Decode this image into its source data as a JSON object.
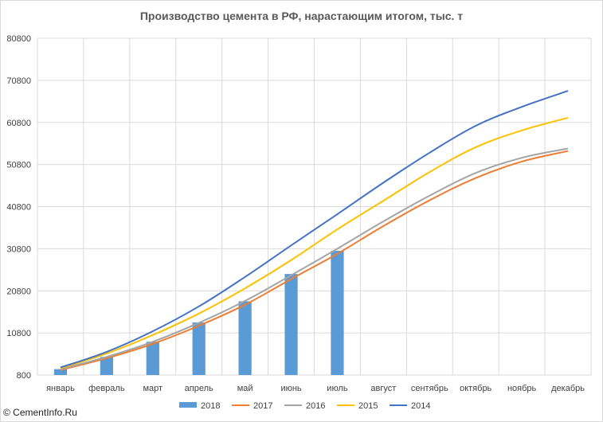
{
  "credit": "© CementInfo.Ru",
  "chart_data": {
    "type": "bar+line",
    "title": "Производство цемента в РФ, нарастающим итогом, тыс. т",
    "categories": [
      "январь",
      "февраль",
      "март",
      "апрель",
      "май",
      "июнь",
      "июль",
      "август",
      "сентябрь",
      "октябрь",
      "ноябрь",
      "декабрь"
    ],
    "yticks": [
      800,
      10800,
      20800,
      30800,
      40800,
      50800,
      60800,
      70800,
      80800
    ],
    "ylim": [
      800,
      80800
    ],
    "grid": true,
    "legend_position": "bottom",
    "series": [
      {
        "name": "2018",
        "kind": "bar",
        "color": "#5b9bd5",
        "values": [
          2200,
          5100,
          8700,
          13300,
          18300,
          24800,
          30300,
          null,
          null,
          null,
          null,
          null
        ]
      },
      {
        "name": "2017",
        "kind": "line",
        "color": "#ed7d31",
        "values": [
          2000,
          4800,
          8200,
          12500,
          17500,
          23600,
          29600,
          36200,
          42300,
          47600,
          51500,
          54000
        ]
      },
      {
        "name": "2016",
        "kind": "line",
        "color": "#a5a5a5",
        "values": [
          2200,
          5100,
          8700,
          13200,
          18400,
          24500,
          30800,
          37300,
          43400,
          48800,
          52400,
          54600
        ]
      },
      {
        "name": "2015",
        "kind": "line",
        "color": "#ffc000",
        "values": [
          2400,
          5900,
          10300,
          15400,
          21400,
          28100,
          35400,
          42200,
          49000,
          54900,
          58900,
          61900
        ]
      },
      {
        "name": "2014",
        "kind": "line",
        "color": "#4472c4",
        "values": [
          2600,
          6300,
          11200,
          17100,
          24100,
          31600,
          39000,
          46500,
          53600,
          60000,
          64500,
          68300
        ]
      }
    ]
  }
}
